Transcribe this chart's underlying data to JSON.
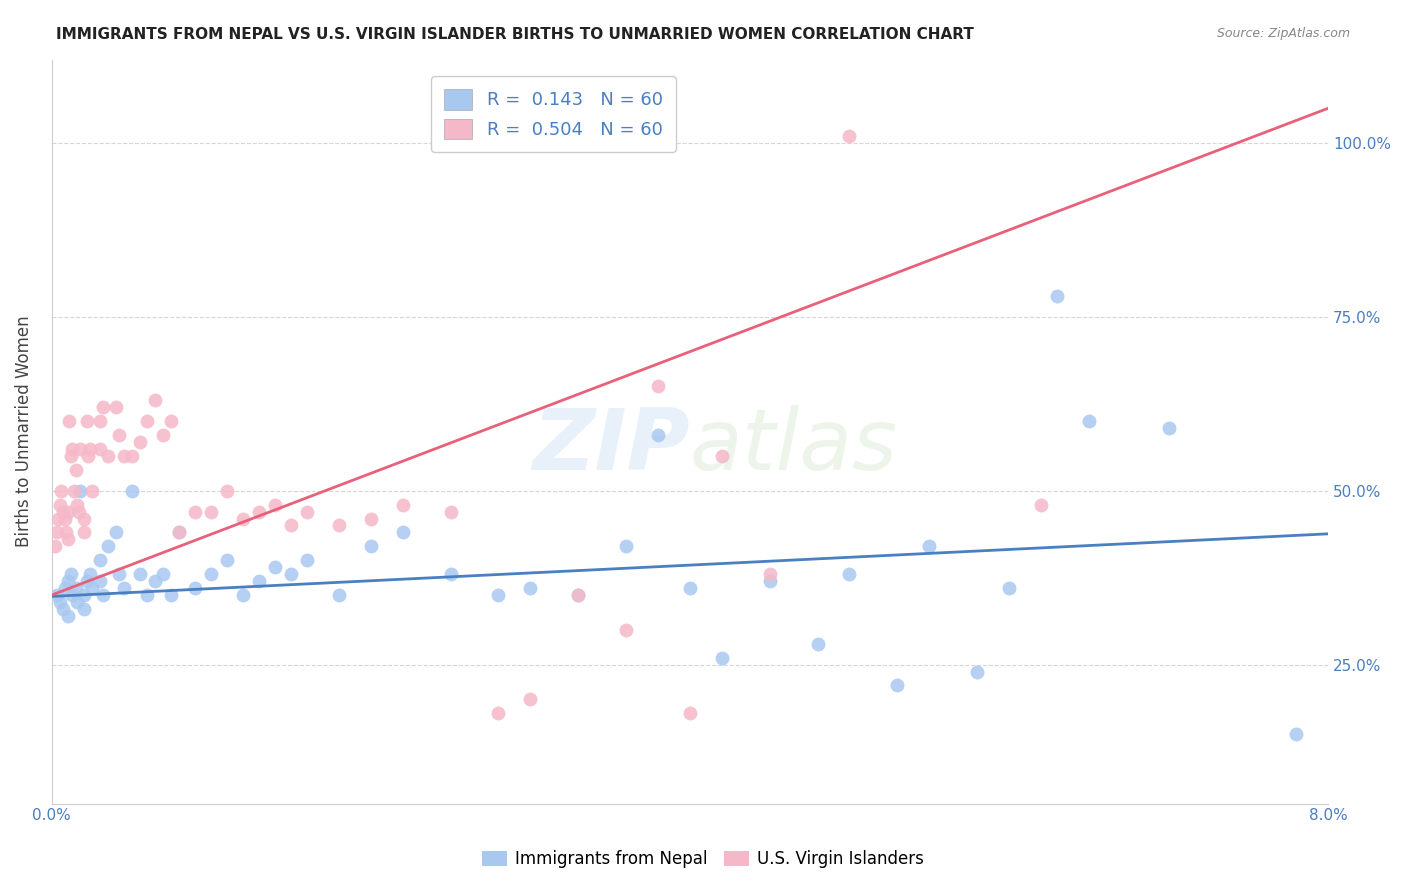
{
  "title": "IMMIGRANTS FROM NEPAL VS U.S. VIRGIN ISLANDER BIRTHS TO UNMARRIED WOMEN CORRELATION CHART",
  "source": "Source: ZipAtlas.com",
  "ylabel": "Births to Unmarried Women",
  "watermark": "ZIPatlas",
  "blue_color": "#a8c8f0",
  "pink_color": "#f5b8c8",
  "blue_line_color": "#4a7fc1",
  "pink_line_color": "#e8607a",
  "legend_text_color": "#4a7fc1",
  "tick_color": "#4a7fc1",
  "xlim": [
    0.0,
    0.08
  ],
  "ylim": [
    0.05,
    1.12
  ],
  "nepal_x": [
    0.0003,
    0.0005,
    0.0007,
    0.0008,
    0.001,
    0.001,
    0.0012,
    0.0013,
    0.0015,
    0.0016,
    0.0018,
    0.002,
    0.002,
    0.0022,
    0.0024,
    0.0025,
    0.003,
    0.003,
    0.0032,
    0.0035,
    0.004,
    0.0042,
    0.0045,
    0.005,
    0.0055,
    0.006,
    0.0065,
    0.007,
    0.0075,
    0.008,
    0.009,
    0.01,
    0.011,
    0.012,
    0.013,
    0.014,
    0.015,
    0.016,
    0.018,
    0.02,
    0.022,
    0.025,
    0.028,
    0.03,
    0.033,
    0.036,
    0.038,
    0.04,
    0.042,
    0.045,
    0.048,
    0.05,
    0.053,
    0.055,
    0.058,
    0.06,
    0.063,
    0.065,
    0.07,
    0.078
  ],
  "nepal_y": [
    0.35,
    0.34,
    0.33,
    0.36,
    0.37,
    0.32,
    0.38,
    0.35,
    0.36,
    0.34,
    0.5,
    0.35,
    0.33,
    0.37,
    0.38,
    0.36,
    0.4,
    0.37,
    0.35,
    0.42,
    0.44,
    0.38,
    0.36,
    0.5,
    0.38,
    0.35,
    0.37,
    0.38,
    0.35,
    0.44,
    0.36,
    0.38,
    0.4,
    0.35,
    0.37,
    0.39,
    0.38,
    0.4,
    0.35,
    0.42,
    0.44,
    0.38,
    0.35,
    0.36,
    0.35,
    0.42,
    0.58,
    0.36,
    0.26,
    0.37,
    0.28,
    0.38,
    0.22,
    0.42,
    0.24,
    0.36,
    0.78,
    0.6,
    0.59,
    0.15
  ],
  "virgin_x": [
    0.0002,
    0.0003,
    0.0004,
    0.0005,
    0.0006,
    0.0007,
    0.0008,
    0.0009,
    0.001,
    0.001,
    0.0011,
    0.0012,
    0.0013,
    0.0014,
    0.0015,
    0.0016,
    0.0017,
    0.0018,
    0.002,
    0.002,
    0.0022,
    0.0023,
    0.0024,
    0.0025,
    0.003,
    0.003,
    0.0032,
    0.0035,
    0.004,
    0.0042,
    0.0045,
    0.005,
    0.0055,
    0.006,
    0.0065,
    0.007,
    0.0075,
    0.008,
    0.009,
    0.01,
    0.011,
    0.012,
    0.013,
    0.014,
    0.015,
    0.016,
    0.018,
    0.02,
    0.022,
    0.025,
    0.028,
    0.03,
    0.033,
    0.036,
    0.038,
    0.04,
    0.042,
    0.045,
    0.05,
    0.062
  ],
  "virgin_y": [
    0.42,
    0.44,
    0.46,
    0.48,
    0.5,
    0.47,
    0.46,
    0.44,
    0.47,
    0.43,
    0.6,
    0.55,
    0.56,
    0.5,
    0.53,
    0.48,
    0.47,
    0.56,
    0.44,
    0.46,
    0.6,
    0.55,
    0.56,
    0.5,
    0.6,
    0.56,
    0.62,
    0.55,
    0.62,
    0.58,
    0.55,
    0.55,
    0.57,
    0.6,
    0.63,
    0.58,
    0.6,
    0.44,
    0.47,
    0.47,
    0.5,
    0.46,
    0.47,
    0.48,
    0.45,
    0.47,
    0.45,
    0.46,
    0.48,
    0.47,
    0.18,
    0.2,
    0.35,
    0.3,
    0.65,
    0.18,
    0.55,
    0.38,
    1.01,
    0.48
  ],
  "nepal_line_x": [
    0.0,
    0.08
  ],
  "nepal_line_y": [
    0.348,
    0.438
  ],
  "virgin_line_x": [
    0.0,
    0.08
  ],
  "virgin_line_y": [
    0.35,
    1.05
  ]
}
